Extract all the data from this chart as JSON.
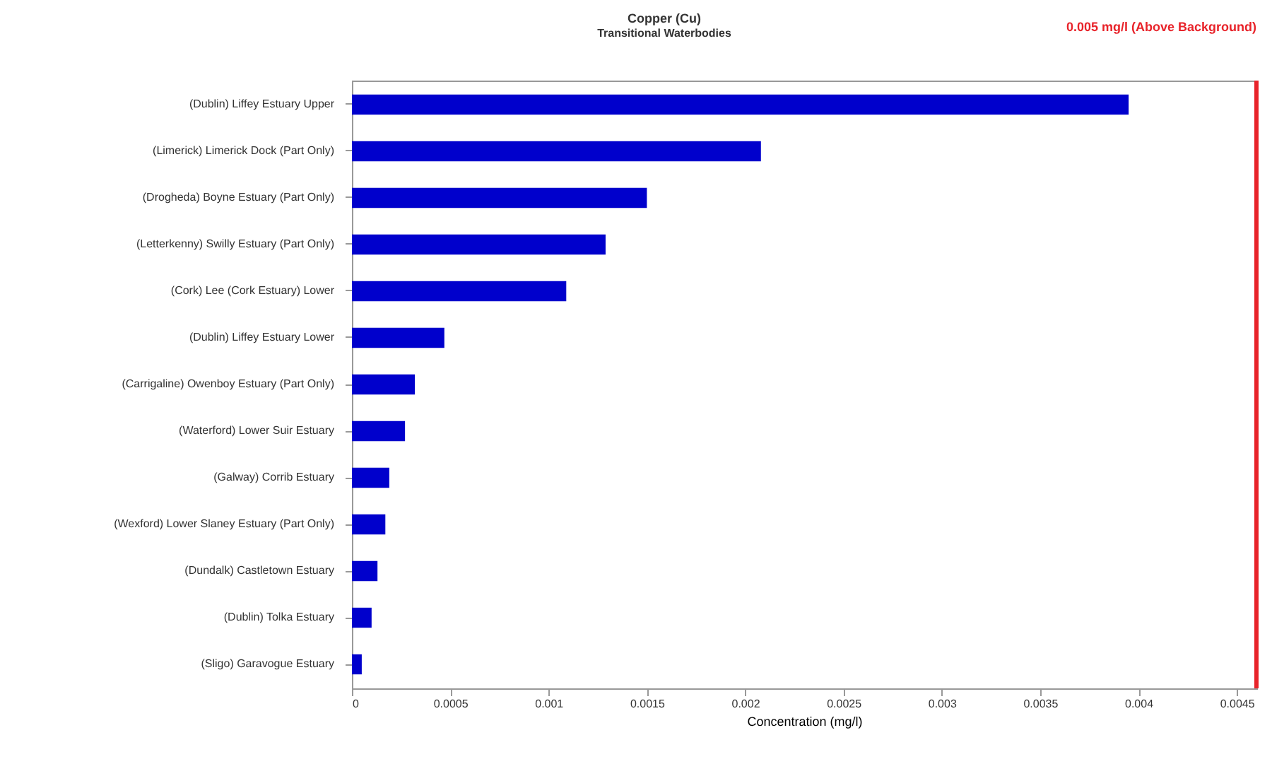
{
  "chart_data": {
    "type": "bar",
    "orientation": "horizontal",
    "title": "Copper (Cu)",
    "subtitle": "Transitional Waterbodies",
    "xlabel": "Concentration (mg/l)",
    "categories": [
      "(Dublin) Liffey Estuary Upper",
      "(Limerick) Limerick Dock (Part Only)",
      "(Drogheda) Boyne Estuary (Part Only)",
      "(Letterkenny) Swilly Estuary (Part Only)",
      "(Cork) Lee (Cork Estuary) Lower",
      "(Dublin) Liffey Estuary Lower",
      "(Carrigaline) Owenboy Estuary (Part Only)",
      "(Waterford) Lower Suir Estuary",
      "(Galway) Corrib Estuary",
      "(Wexford) Lower Slaney Estuary (Part Only)",
      "(Dundalk) Castletown Estuary",
      "(Dublin) Tolka Estuary",
      "(Sligo) Garavogue Estuary"
    ],
    "values": [
      0.00395,
      0.00208,
      0.0015,
      0.00129,
      0.00109,
      0.00047,
      0.00032,
      0.00027,
      0.00019,
      0.00017,
      0.00013,
      0.0001,
      5e-05
    ],
    "color": "#0000cc",
    "xlim": [
      0,
      0.0046
    ],
    "xticks": [
      0,
      0.0005,
      0.001,
      0.0015,
      0.002,
      0.0025,
      0.003,
      0.0035,
      0.004,
      0.0045
    ],
    "ref_lines": [
      {
        "axis": "x",
        "value": 0.0046,
        "label": "0.005 mg/l (Above Background)",
        "color": "#e8232a"
      }
    ],
    "grid": false
  }
}
